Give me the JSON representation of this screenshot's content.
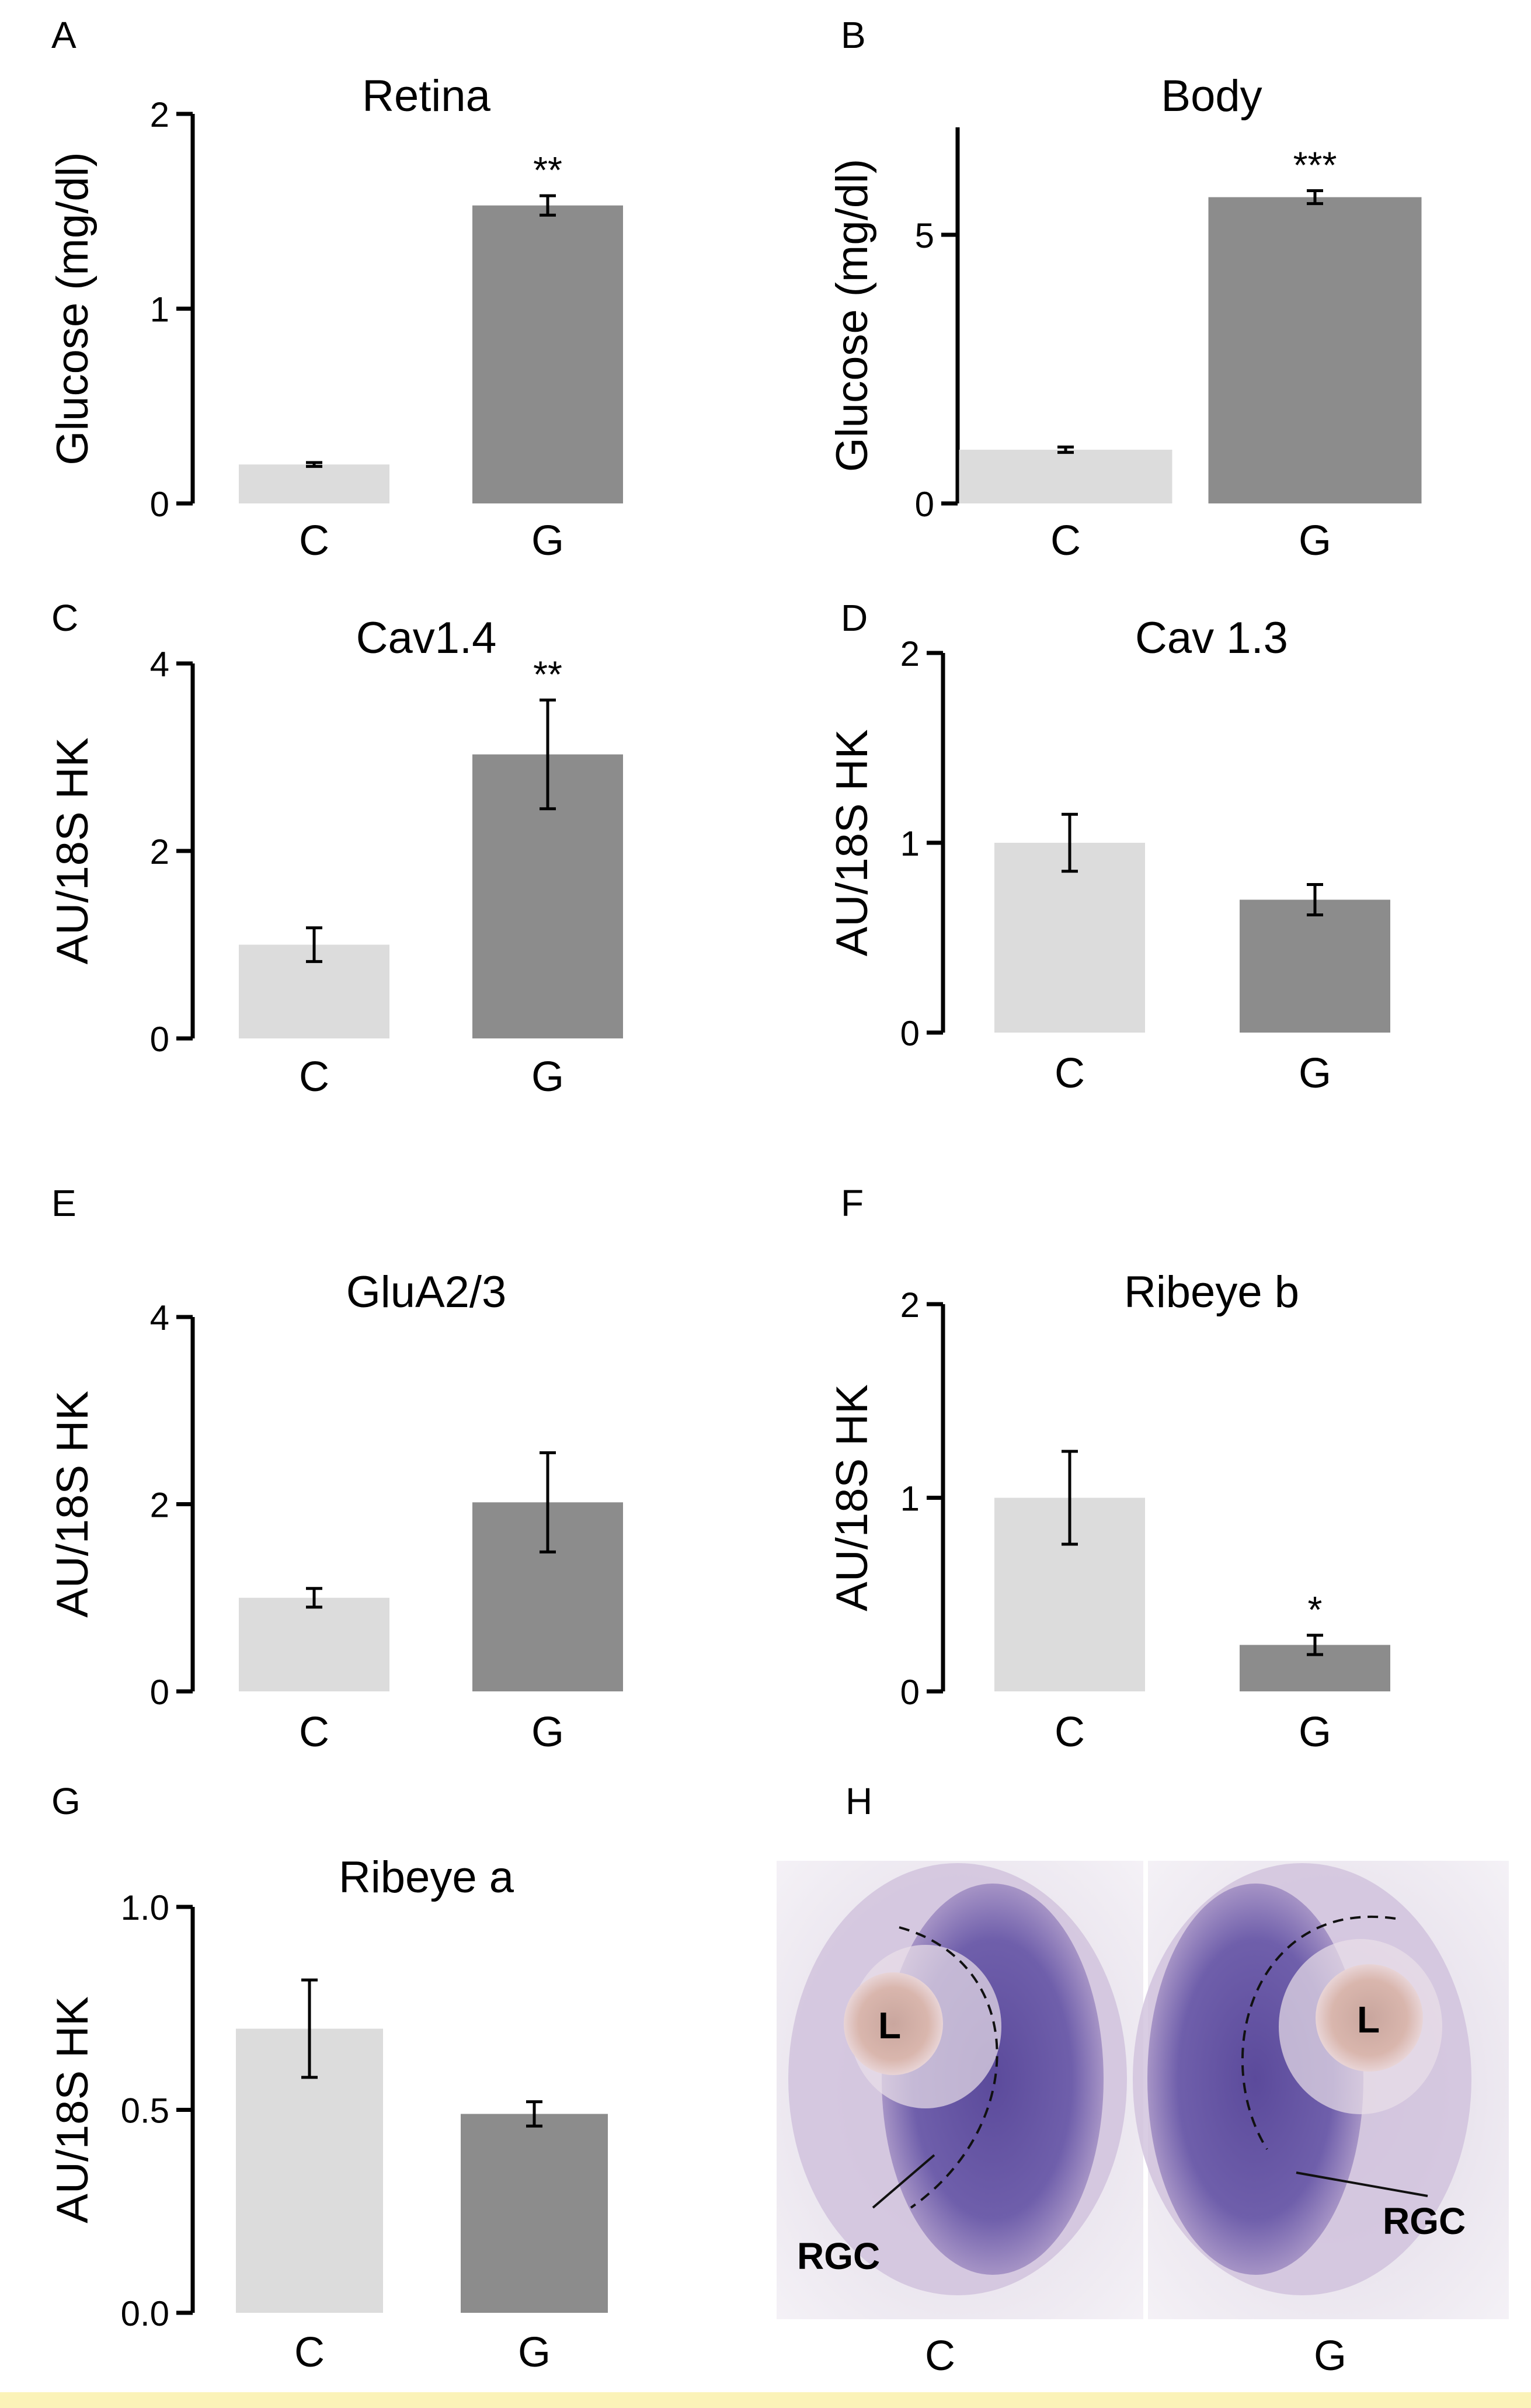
{
  "colors": {
    "control_bar": "#dcdcdc",
    "glucose_bar": "#8c8c8c",
    "axis": "#000000",
    "stain_light": "#b9a6cf",
    "stain_dark": "#5b4a9b",
    "lens": "#c9a69e"
  },
  "chart_data": [
    {
      "panel": "A",
      "type": "bar",
      "title": "Retina",
      "ylabel": "Glucose (mg/dl)",
      "categories": [
        "C",
        "G"
      ],
      "values": [
        0.2,
        1.53
      ],
      "errors": [
        0.01,
        0.05
      ],
      "ylim": [
        0,
        2
      ],
      "yticks": [
        "0",
        "1",
        "2"
      ],
      "significance": [
        "",
        "**"
      ]
    },
    {
      "panel": "B",
      "type": "bar",
      "title": "Body",
      "ylabel": "Glucose (mg/dl)",
      "categories": [
        "C",
        "G"
      ],
      "values": [
        1.0,
        5.7
      ],
      "errors": [
        0.05,
        0.12
      ],
      "ylim": [
        0,
        7
      ],
      "yticks": [
        "0",
        "5"
      ],
      "tick_values": [
        0,
        5
      ],
      "significance": [
        "",
        "***"
      ]
    },
    {
      "panel": "C",
      "type": "bar",
      "title": "Cav1.4",
      "ylabel": "AU/18S HK",
      "categories": [
        "C",
        "G"
      ],
      "values": [
        1.0,
        3.03
      ],
      "errors": [
        0.18,
        0.58
      ],
      "ylim": [
        0,
        4
      ],
      "yticks": [
        "0",
        "2",
        "4"
      ],
      "significance": [
        "",
        "**"
      ]
    },
    {
      "panel": "D",
      "type": "bar",
      "title": "Cav 1.3",
      "ylabel": "AU/18S HK",
      "categories": [
        "C",
        "G"
      ],
      "values": [
        1.0,
        0.7
      ],
      "errors": [
        0.15,
        0.08
      ],
      "ylim": [
        0,
        2
      ],
      "yticks": [
        "0",
        "1",
        "2"
      ],
      "significance": [
        "",
        ""
      ]
    },
    {
      "panel": "E",
      "type": "bar",
      "title": "GluA2/3",
      "ylabel": "AU/18S HK",
      "categories": [
        "C",
        "G"
      ],
      "values": [
        1.0,
        2.02
      ],
      "errors": [
        0.1,
        0.53
      ],
      "ylim": [
        0,
        4
      ],
      "yticks": [
        "0",
        "2",
        "4"
      ],
      "significance": [
        "",
        ""
      ]
    },
    {
      "panel": "F",
      "type": "bar",
      "title": "Ribeye b",
      "ylabel": "AU/18S HK",
      "categories": [
        "C",
        "G"
      ],
      "values": [
        1.0,
        0.24
      ],
      "errors": [
        0.24,
        0.05
      ],
      "ylim": [
        0,
        2
      ],
      "yticks": [
        "0",
        "1",
        "2"
      ],
      "significance": [
        "",
        "*"
      ]
    },
    {
      "panel": "G",
      "type": "bar",
      "title": "Ribeye a",
      "ylabel": "AU/18S HK",
      "categories": [
        "C",
        "G"
      ],
      "values": [
        0.7,
        0.49
      ],
      "errors": [
        0.12,
        0.03
      ],
      "ylim": [
        0,
        1
      ],
      "yticks": [
        "0.0",
        "0.5",
        "1.0"
      ],
      "tick_values": [
        0,
        0.5,
        1.0
      ],
      "significance": [
        "",
        ""
      ]
    }
  ],
  "image_panel": {
    "panel": "H",
    "images": [
      {
        "condition": "C",
        "lens_label": "L",
        "cell_label": "RGC"
      },
      {
        "condition": "G",
        "lens_label": "L",
        "cell_label": "RGC"
      }
    ]
  }
}
